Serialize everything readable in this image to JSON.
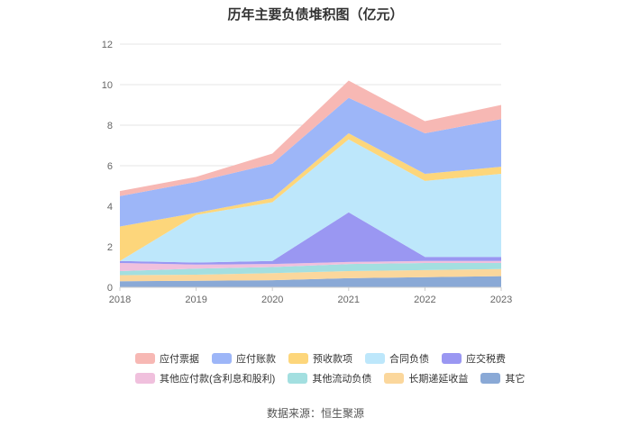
{
  "chart_data": {
    "type": "area",
    "stacked": true,
    "title": "历年主要负债堆积图（亿元）",
    "xlabel": "",
    "ylabel": "",
    "ylim": [
      0,
      12
    ],
    "yticks": [
      0,
      2,
      4,
      6,
      8,
      10,
      12
    ],
    "categories": [
      "2018",
      "2019",
      "2020",
      "2021",
      "2022",
      "2023"
    ],
    "grid": true,
    "legend_position": "bottom",
    "series": [
      {
        "name": "其它",
        "color": "#8aa9d6",
        "values": [
          0.3,
          0.32,
          0.35,
          0.45,
          0.5,
          0.55
        ]
      },
      {
        "name": "长期递延收益",
        "color": "#fbd79c",
        "values": [
          0.3,
          0.3,
          0.35,
          0.35,
          0.35,
          0.35
        ]
      },
      {
        "name": "其他流动负债",
        "color": "#a3dfe0",
        "values": [
          0.2,
          0.3,
          0.3,
          0.35,
          0.35,
          0.3
        ]
      },
      {
        "name": "其他应付款(含利息和股利)",
        "color": "#f0c0dd",
        "values": [
          0.4,
          0.2,
          0.15,
          0.1,
          0.1,
          0.1
        ]
      },
      {
        "name": "应交税费",
        "color": "#9a97f2",
        "values": [
          0.1,
          0.1,
          0.15,
          2.45,
          0.2,
          0.2
        ]
      },
      {
        "name": "合同负债",
        "color": "#bde7fb",
        "values": [
          0.0,
          2.35,
          2.9,
          3.6,
          3.75,
          4.1
        ]
      },
      {
        "name": "预收款项",
        "color": "#fdd67b",
        "values": [
          1.7,
          0.1,
          0.2,
          0.3,
          0.35,
          0.35
        ]
      },
      {
        "name": "应付账款",
        "color": "#9db6f8",
        "values": [
          1.5,
          1.53,
          1.7,
          1.75,
          2.0,
          2.35
        ]
      },
      {
        "name": "应付票据",
        "color": "#f7b8b4",
        "values": [
          0.25,
          0.25,
          0.5,
          0.85,
          0.6,
          0.7
        ]
      }
    ],
    "legend_rows": [
      [
        "应付票据",
        "应付账款",
        "预收款项",
        "合同负债",
        "应交税费"
      ],
      [
        "其他应付款(含利息和股利)",
        "其他流动负债",
        "长期递延收益",
        "其它"
      ]
    ]
  },
  "source_text": "数据来源：恒生聚源"
}
